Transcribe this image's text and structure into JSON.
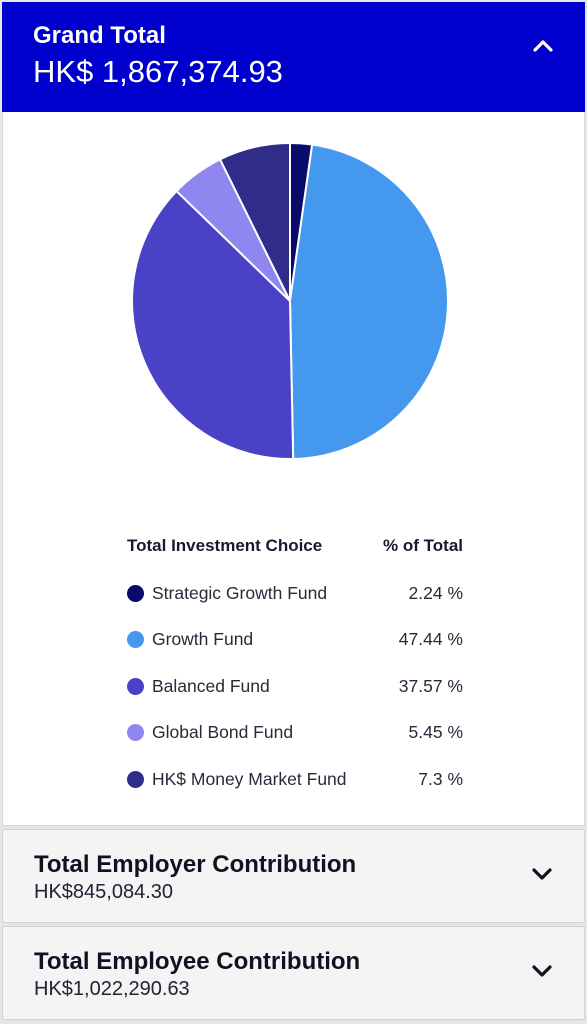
{
  "grand_total": {
    "title": "Grand Total",
    "amount": "HK$ 1,867,374.93",
    "toggle_icon": "chevron-up-icon",
    "bg_color": "#0000cc"
  },
  "breakdown": {
    "header_choice": "Total Investment Choice",
    "header_percent": "% of Total",
    "items": [
      {
        "name": "Strategic Growth Fund",
        "percent_label": "2.24 %",
        "percent": 2.24,
        "color": "#0a0a6b"
      },
      {
        "name": "Growth Fund",
        "percent_label": "47.44 %",
        "percent": 47.44,
        "color": "#4499ee"
      },
      {
        "name": "Balanced Fund",
        "percent_label": "37.57 %",
        "percent": 37.57,
        "color": "#4a42c6"
      },
      {
        "name": "Global Bond Fund",
        "percent_label": "5.45 %",
        "percent": 5.45,
        "color": "#8f86f0"
      },
      {
        "name": "HK$ Money Market Fund",
        "percent_label": "7.3 %",
        "percent": 7.3,
        "color": "#2f2c8a"
      }
    ]
  },
  "employer": {
    "title": "Total Employer Contribution",
    "amount": "HK$845,084.30",
    "toggle_icon": "chevron-down-icon"
  },
  "employee": {
    "title": "Total Employee Contribution",
    "amount": "HK$1,022,290.63",
    "toggle_icon": "chevron-down-icon"
  }
}
